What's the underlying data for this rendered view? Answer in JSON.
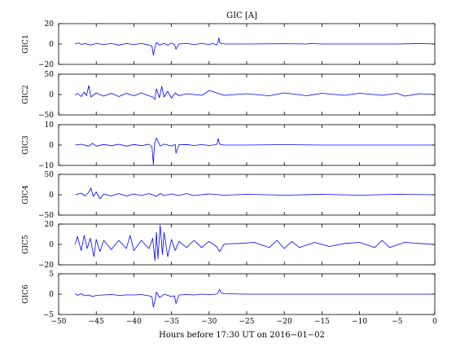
{
  "chart_data": {
    "type": "line",
    "title": "GIC [A]",
    "xlabel": "Hours before  17:30 UT on 2016−01−02",
    "xlim": [
      -50,
      0
    ],
    "xticks": [
      -50,
      -45,
      -40,
      -35,
      -30,
      -25,
      -20,
      -15,
      -10,
      -5,
      0
    ],
    "xtick_labels": [
      "−50",
      "−45",
      "−40",
      "−35",
      "−30",
      "−25",
      "−20",
      "−15",
      "−10",
      "−5",
      "0"
    ],
    "grid": false,
    "line_color": "#0000ff",
    "panels": [
      {
        "name": "GIC1",
        "ylabel": "GIC1",
        "ylim": [
          -20,
          20
        ],
        "yticks": [
          -20,
          0,
          20
        ],
        "ytick_labels": [
          "−20",
          "0",
          "20"
        ],
        "x": [
          -47.8,
          -47.3,
          -47.0,
          -46.5,
          -45.8,
          -45.0,
          -44.0,
          -43.0,
          -42.0,
          -41.0,
          -40.0,
          -39.0,
          -38.0,
          -37.6,
          -37.4,
          -37.2,
          -37.0,
          -36.6,
          -36.0,
          -35.5,
          -35.0,
          -34.6,
          -34.4,
          -34.0,
          -33.0,
          -32.0,
          -31.0,
          -30.0,
          -29.5,
          -29.0,
          -28.8,
          -28.7,
          -28.6,
          -28.4,
          -28.0,
          -25.0,
          -20.0,
          -17.0,
          -16.5,
          -15.0,
          -10.0,
          -5.0,
          -2.0,
          0.0
        ],
        "values": [
          0,
          1,
          -0.5,
          0.5,
          -1,
          0.5,
          -0.5,
          0.5,
          -1,
          0.5,
          -0.5,
          0.5,
          -1,
          -2,
          -11,
          -3,
          1.5,
          -1,
          0.5,
          -1,
          1,
          -0.5,
          -5,
          0,
          0.5,
          -0.5,
          0.5,
          -0.5,
          0.5,
          -1,
          2,
          6,
          1.5,
          0.5,
          0,
          0,
          0.3,
          0,
          0.5,
          0,
          0,
          0,
          0.5,
          0
        ]
      },
      {
        "name": "GIC2",
        "ylabel": "GIC2",
        "ylim": [
          -50,
          50
        ],
        "yticks": [
          -50,
          0,
          50
        ],
        "ytick_labels": [
          "−50",
          "0",
          "50"
        ],
        "x": [
          -47.8,
          -47.5,
          -47.0,
          -46.6,
          -46.3,
          -46.0,
          -45.7,
          -45.0,
          -44.0,
          -43.0,
          -42.0,
          -41.0,
          -40.0,
          -39.0,
          -38.0,
          -37.5,
          -37.2,
          -37.0,
          -36.6,
          -36.3,
          -36.0,
          -35.5,
          -35.0,
          -34.5,
          -34.0,
          -33.0,
          -31.0,
          -30.5,
          -30.0,
          -28.8,
          -28.0,
          -25.0,
          -22.0,
          -20.0,
          -17.0,
          -15.0,
          -12.0,
          -10.0,
          -7.0,
          -5.0,
          -4.0,
          -2.0,
          0.0
        ],
        "values": [
          -2,
          3,
          -5,
          6,
          -3,
          22,
          -6,
          4,
          -4,
          3,
          -5,
          3,
          -3,
          4,
          -3,
          -6,
          -12,
          14,
          -8,
          20,
          -6,
          8,
          -9,
          4,
          -3,
          2,
          -2,
          3,
          10,
          3,
          -2,
          2,
          -3,
          4,
          -3,
          3,
          -2,
          3,
          -2,
          3,
          -4,
          2,
          0
        ]
      },
      {
        "name": "GIC3",
        "ylabel": "GIC3",
        "ylim": [
          -10,
          10
        ],
        "yticks": [
          -10,
          0,
          10
        ],
        "ytick_labels": [
          "−10",
          "0",
          "10"
        ],
        "x": [
          -47.8,
          -47.0,
          -46.0,
          -45.5,
          -45.0,
          -44.0,
          -43.0,
          -42.0,
          -41.0,
          -40.0,
          -39.0,
          -38.0,
          -37.6,
          -37.4,
          -37.3,
          -37.2,
          -37.0,
          -36.5,
          -36.0,
          -35.0,
          -34.5,
          -34.4,
          -34.0,
          -33.0,
          -32.0,
          -31.0,
          -30.0,
          -29.0,
          -28.9,
          -28.8,
          -28.6,
          -28.4,
          -28.0,
          -25.0,
          -20.0,
          -15.0,
          -10.0,
          -5.0,
          0.0
        ],
        "values": [
          0,
          0.4,
          -0.5,
          0.8,
          -0.5,
          0.3,
          -0.3,
          0.4,
          -0.5,
          0.3,
          -0.3,
          0.4,
          -0.8,
          -9.5,
          -2.5,
          1.5,
          3.5,
          -0.5,
          0.5,
          -0.5,
          0.3,
          -4,
          0.2,
          0.3,
          -0.2,
          0.2,
          -0.2,
          0.2,
          1.2,
          3.2,
          0.5,
          0.2,
          0,
          0,
          0.2,
          0,
          0,
          0,
          0
        ]
      },
      {
        "name": "GIC4",
        "ylabel": "GIC4",
        "ylim": [
          -50,
          50
        ],
        "yticks": [
          -50,
          0,
          50
        ],
        "ytick_labels": [
          "−50",
          "0",
          "50"
        ],
        "x": [
          -47.8,
          -47.0,
          -46.5,
          -46.0,
          -45.7,
          -45.4,
          -45.0,
          -44.5,
          -44.0,
          -43.0,
          -42.0,
          -41.0,
          -40.0,
          -39.0,
          -38.0,
          -37.0,
          -36.5,
          -36.0,
          -35.0,
          -34.0,
          -33.0,
          -32.0,
          -30.0,
          -28.0,
          -25.0,
          -20.0,
          -15.0,
          -10.0,
          -5.0,
          0.0
        ],
        "values": [
          0,
          4,
          -3,
          6,
          16,
          -4,
          7,
          -10,
          2,
          -3,
          3,
          -3,
          2,
          -2,
          3,
          -4,
          3,
          -2,
          2,
          -2,
          3,
          -2,
          2,
          -1,
          1,
          -1,
          1,
          -1,
          1,
          0
        ]
      },
      {
        "name": "GIC5",
        "ylabel": "GIC5",
        "ylim": [
          -20,
          20
        ],
        "yticks": [
          -20,
          0,
          20
        ],
        "ytick_labels": [
          "−20",
          "0",
          "20"
        ],
        "x": [
          -47.8,
          -47.5,
          -47.0,
          -46.6,
          -46.2,
          -45.8,
          -45.3,
          -45.0,
          -44.5,
          -44.0,
          -43.0,
          -42.0,
          -41.0,
          -40.5,
          -40.0,
          -39.0,
          -38.0,
          -37.5,
          -37.2,
          -37.0,
          -36.8,
          -36.5,
          -36.2,
          -36.0,
          -35.5,
          -35.0,
          -34.5,
          -34.0,
          -33.0,
          -32.0,
          -31.0,
          -30.0,
          -29.0,
          -28.6,
          -28.0,
          -26.0,
          -24.0,
          -22.0,
          -21.0,
          -20.0,
          -19.0,
          -18.0,
          -16.0,
          -14.0,
          -12.0,
          -10.0,
          -8.0,
          -7.0,
          -6.0,
          -4.0,
          -2.0,
          0.0
        ],
        "values": [
          0,
          8,
          -6,
          9,
          -4,
          6,
          -12,
          5,
          -7,
          4,
          -5,
          4,
          -4,
          9,
          -6,
          4,
          -4,
          6,
          -16,
          12,
          -14,
          19,
          -10,
          12,
          -12,
          5,
          -6,
          3,
          -3,
          4,
          -3,
          3,
          -2,
          -7,
          0.5,
          1,
          2,
          -3,
          4,
          -4,
          3,
          -3,
          2,
          -2,
          1,
          2,
          -3,
          4,
          -3,
          2,
          1,
          0
        ]
      },
      {
        "name": "GIC6",
        "ylabel": "GIC6",
        "ylim": [
          -5,
          5
        ],
        "yticks": [
          -5,
          0,
          5
        ],
        "ytick_labels": [
          "−5",
          "0",
          "5"
        ],
        "x": [
          -47.8,
          -47.5,
          -47.0,
          -46.5,
          -46.0,
          -45.5,
          -45.0,
          -44.0,
          -43.0,
          -42.0,
          -41.0,
          -40.0,
          -39.0,
          -38.0,
          -37.6,
          -37.4,
          -37.2,
          -37.0,
          -36.6,
          -36.3,
          -36.0,
          -35.5,
          -35.0,
          -34.6,
          -34.4,
          -34.0,
          -33.0,
          -32.0,
          -31.0,
          -30.0,
          -29.0,
          -28.8,
          -28.6,
          -28.4,
          -28.0,
          -25.0,
          -20.0,
          -15.0,
          -10.0,
          -5.0,
          0.0
        ],
        "values": [
          0.2,
          -0.3,
          0.1,
          -0.4,
          -0.2,
          -0.6,
          -0.3,
          -0.2,
          -0.1,
          -0.3,
          -0.2,
          -0.2,
          -0.1,
          -0.4,
          -0.6,
          -3.2,
          -1.5,
          0.5,
          -0.8,
          -0.5,
          0,
          -0.3,
          -0.6,
          -0.4,
          -2.3,
          -0.2,
          -0.1,
          -0.2,
          0,
          -0.1,
          0,
          0.4,
          1.2,
          0.3,
          0.1,
          0,
          0,
          0,
          0,
          0,
          0
        ]
      }
    ]
  }
}
